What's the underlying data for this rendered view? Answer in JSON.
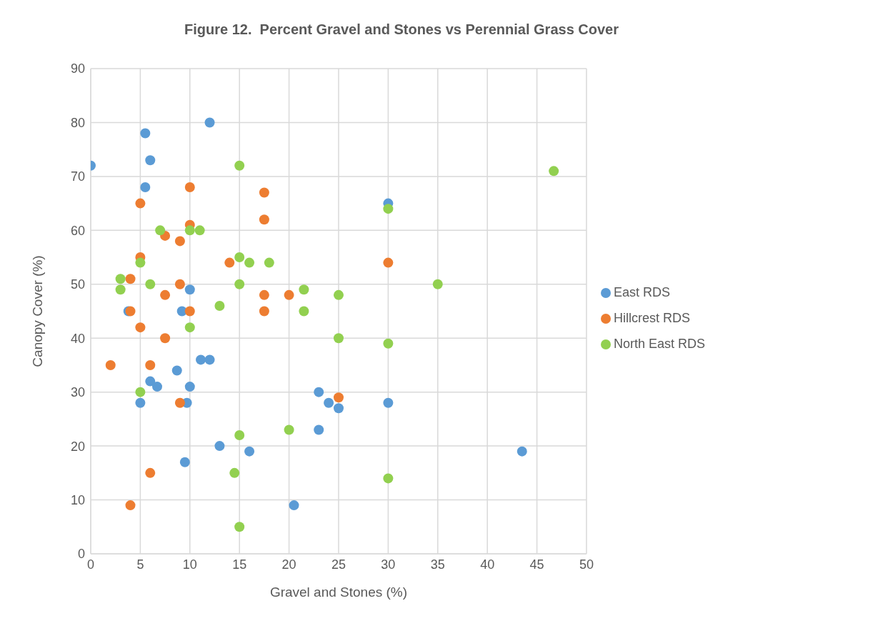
{
  "chart_data": {
    "type": "scatter",
    "title": "Figure 12.  Percent Gravel and Stones vs Perennial Grass Cover",
    "xlabel": "Gravel and Stones (%)",
    "ylabel": "Canopy Cover (%)",
    "xlim": [
      0,
      50
    ],
    "xticks": [
      0,
      5,
      10,
      15,
      20,
      25,
      30,
      35,
      40,
      45,
      50
    ],
    "ylim": [
      0,
      90
    ],
    "yticks": [
      0,
      10,
      20,
      30,
      40,
      50,
      60,
      70,
      80,
      90
    ],
    "grid": true,
    "legend": "right",
    "marker": "circle",
    "series": [
      {
        "name": "East RDS",
        "color": "#5b9bd5",
        "x": [
          0,
          5.5,
          6,
          5.5,
          12,
          10,
          3.8,
          9.2,
          11.1,
          12,
          8.7,
          6,
          6.7,
          10,
          5,
          9.7,
          30,
          23,
          24,
          25,
          30,
          23,
          13,
          16,
          9.5,
          20.5,
          43.5
        ],
        "values": [
          72,
          78,
          73,
          68,
          80,
          49,
          45,
          45,
          36,
          36,
          34,
          32,
          31,
          31,
          28,
          28,
          65,
          30,
          28,
          27,
          28,
          23,
          20,
          19,
          17,
          9,
          19
        ]
      },
      {
        "name": "Hillcrest RDS",
        "color": "#ed7d31",
        "x": [
          5,
          10,
          10,
          7.5,
          9,
          5,
          4,
          14,
          17.5,
          17.5,
          9,
          17.5,
          20,
          17.5,
          10,
          4,
          5,
          7.5,
          7.5,
          2,
          6,
          9,
          25,
          30,
          6,
          4
        ],
        "values": [
          65,
          68,
          61,
          59,
          58,
          55,
          51,
          54,
          67,
          62,
          50,
          48,
          48,
          45,
          45,
          45,
          42,
          48,
          40,
          35,
          35,
          28,
          29,
          54,
          15,
          9
        ]
      },
      {
        "name": "North East RDS",
        "color": "#92d050",
        "x": [
          15,
          10,
          11,
          7,
          15,
          16,
          18,
          15,
          21.5,
          25,
          13,
          21.5,
          5,
          3,
          3,
          6,
          10,
          5,
          25,
          20,
          15,
          14.5,
          15,
          30,
          35,
          30,
          30,
          46.7
        ],
        "values": [
          72,
          60,
          60,
          60,
          55,
          54,
          54,
          50,
          49,
          48,
          46,
          45,
          54,
          51,
          49,
          50,
          42,
          30,
          40,
          23,
          22,
          15,
          5,
          64,
          50,
          39,
          14,
          71
        ]
      }
    ]
  }
}
